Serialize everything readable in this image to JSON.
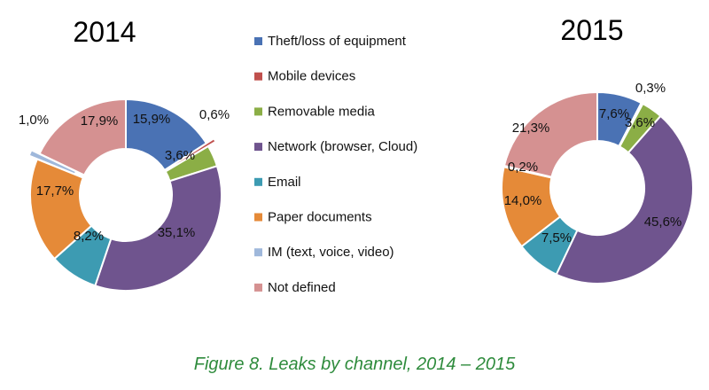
{
  "colors": {
    "Theft/loss of equipment": "#4a72b4",
    "Mobile devices": "#c0504d",
    "Removable media": "#8bae46",
    "Network (browser, Cloud)": "#6f548e",
    "Email": "#3d9bb2",
    "Paper documents": "#e58a38",
    "IM (text, voice, video)": "#9fb8db",
    "Not defined": "#d59191"
  },
  "chart_data": [
    {
      "type": "pie",
      "title": "2014",
      "categories": [
        "Theft/loss of equipment",
        "Mobile devices",
        "Removable media",
        "Network (browser, Cloud)",
        "Email",
        "Paper documents",
        "IM (text, voice, video)",
        "Not defined"
      ],
      "values": [
        15.9,
        0.6,
        3.6,
        35.1,
        8.2,
        17.7,
        1.0,
        17.9
      ],
      "labels": [
        "15,9%",
        "0,6%",
        "3,6%",
        "35,1%",
        "8,2%",
        "17,7%",
        "1,0%",
        "17,9%"
      ],
      "exploded": [
        "Mobile devices",
        "IM (text, voice, video)"
      ]
    },
    {
      "type": "pie",
      "title": "2015",
      "categories": [
        "Theft/loss of equipment",
        "Mobile devices",
        "Removable media",
        "Network (browser, Cloud)",
        "Email",
        "Paper documents",
        "IM (text, voice, video)",
        "Not defined"
      ],
      "values": [
        7.6,
        0.3,
        3.6,
        45.6,
        7.5,
        14.0,
        0.2,
        21.3
      ],
      "labels": [
        "7,6%",
        "0,3%",
        "3,6%",
        "45,6%",
        "7,5%",
        "14,0%",
        "0,2%",
        "21,3%"
      ],
      "exploded": [
        "Mobile devices"
      ]
    }
  ],
  "legend": [
    "Theft/loss of equipment",
    "Mobile devices",
    "Removable media",
    "Network (browser, Cloud)",
    "Email",
    "Paper documents",
    "IM (text, voice, video)",
    "Not defined"
  ],
  "caption": "Figure 8. Leaks by channel, 2014 – 2015"
}
